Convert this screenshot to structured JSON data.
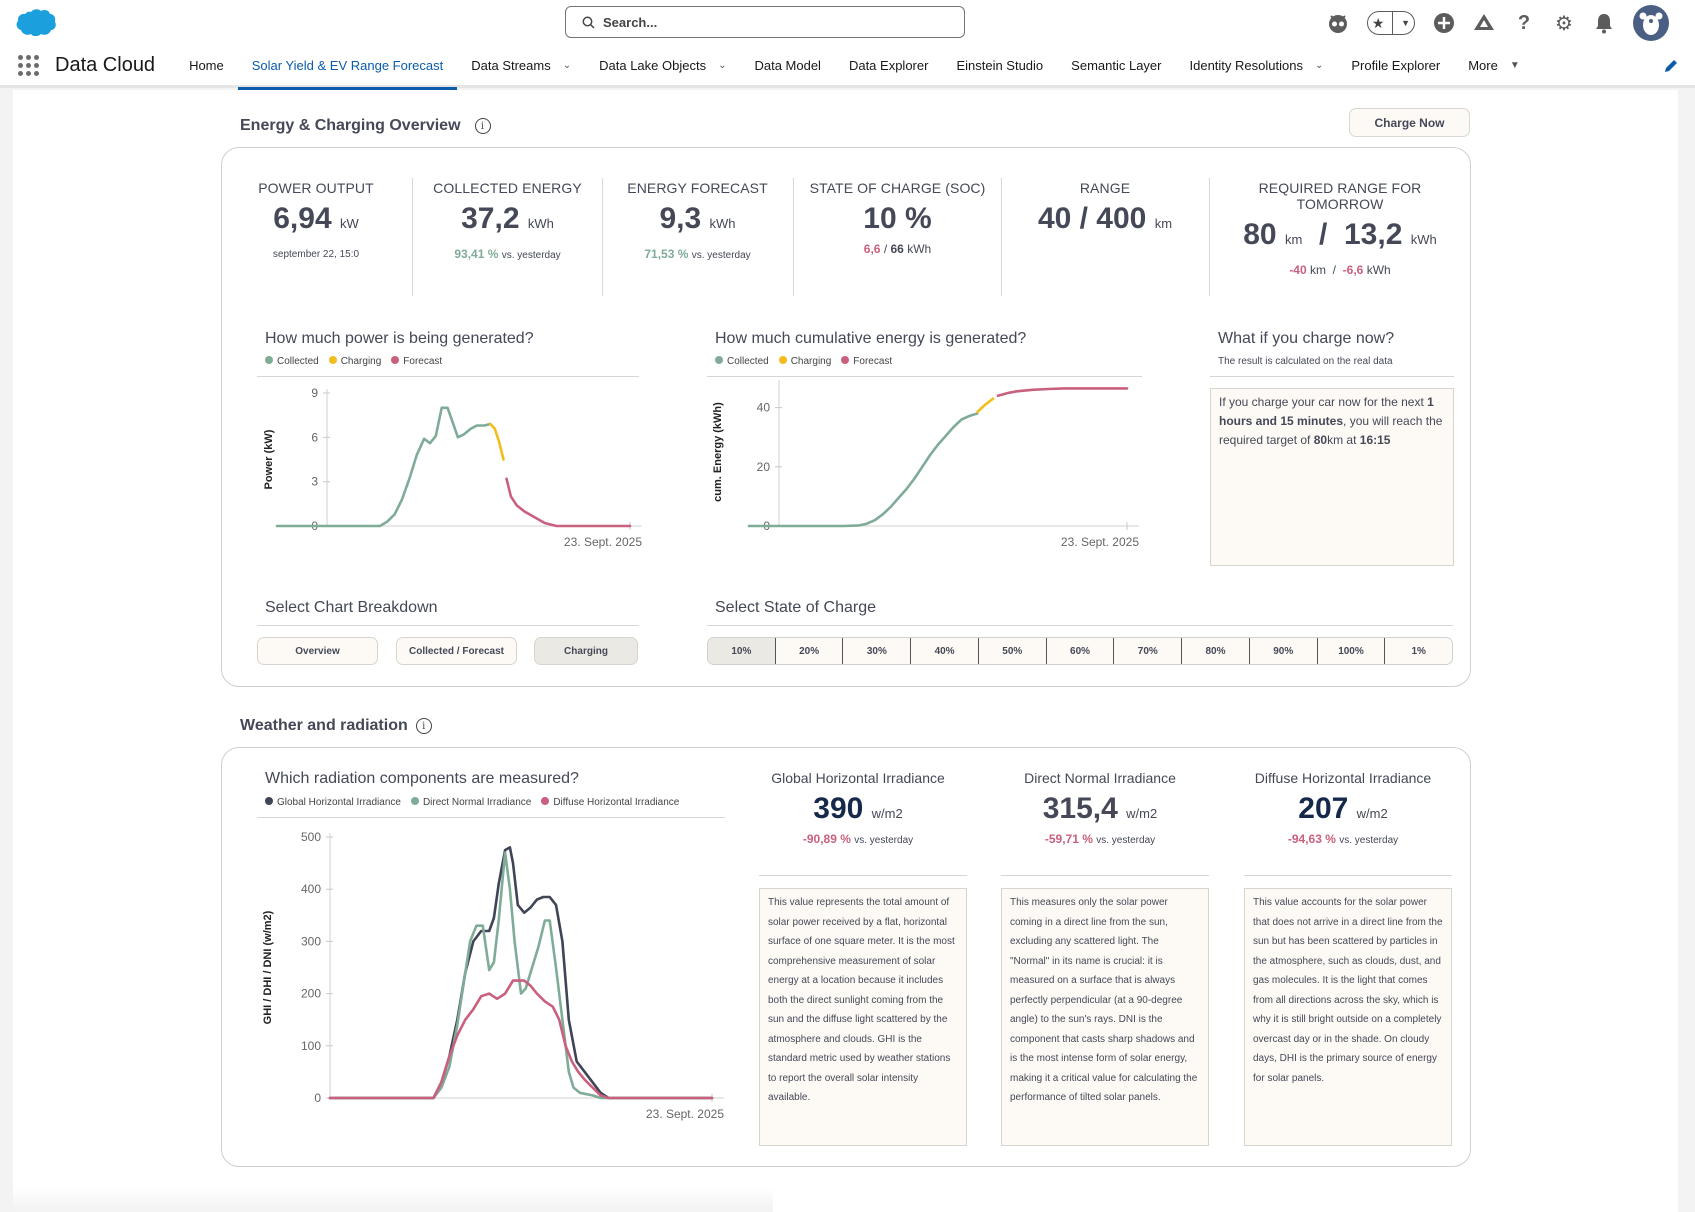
{
  "header": {
    "search_placeholder": "Search...",
    "app_name": "Data Cloud",
    "nav": [
      {
        "label": "Home",
        "dropdown": false,
        "active": false
      },
      {
        "label": "Solar Yield & EV Range Forecast",
        "dropdown": false,
        "active": true
      },
      {
        "label": "Data Streams",
        "dropdown": true,
        "active": false
      },
      {
        "label": "Data Lake Objects",
        "dropdown": true,
        "active": false
      },
      {
        "label": "Data Model",
        "dropdown": false,
        "active": false
      },
      {
        "label": "Data Explorer",
        "dropdown": false,
        "active": false
      },
      {
        "label": "Einstein Studio",
        "dropdown": false,
        "active": false
      },
      {
        "label": "Semantic Layer",
        "dropdown": false,
        "active": false
      },
      {
        "label": "Identity Resolutions",
        "dropdown": true,
        "active": false
      },
      {
        "label": "Profile Explorer",
        "dropdown": false,
        "active": false
      },
      {
        "label": "More",
        "dropdown": true,
        "active": false
      }
    ],
    "icons": [
      "astro-icon",
      "favorites-icon",
      "add-icon",
      "trailhead-icon",
      "help-icon",
      "settings-icon",
      "notifications-icon",
      "avatar"
    ]
  },
  "overview": {
    "title": "Energy & Charging Overview",
    "charge_now": "Charge Now",
    "kpis": {
      "power": {
        "label": "POWER OUTPUT",
        "value": "6,94",
        "unit": "kW",
        "sub": "september 22, 15:0"
      },
      "collected": {
        "label": "COLLECTED ENERGY",
        "value": "37,2",
        "unit": "kWh",
        "pct": "93,41 %",
        "vs": "vs. yesterday"
      },
      "forecast": {
        "label": "ENERGY FORECAST",
        "value": "9,3",
        "unit": "kWh",
        "pct": "71,53 %",
        "vs": "vs. yesterday"
      },
      "soc": {
        "label": "STATE OF CHARGE (SOC)",
        "value": "10 %",
        "cur": "6,6",
        "sep": "/",
        "total": "66",
        "unit": "kWh"
      },
      "range": {
        "label": "RANGE",
        "value": "40 / 400",
        "unit": "km"
      },
      "required": {
        "label": "REQUIRED RANGE FOR TOMORROW",
        "km": "80",
        "km_unit": "km",
        "sep": "/",
        "kwh": "13,2",
        "kwh_unit": "kWh",
        "dkm": "-40",
        "dkm_unit": "km",
        "dsep": "/",
        "dkwh": "-6,6",
        "dkwh_unit": "kWh"
      }
    },
    "what_if": {
      "title": "What if you charge now?",
      "subtitle": "The result is calculated on the real data",
      "t1": "If you charge your car now for the next ",
      "b1": "1 hours and 15 minutes",
      "t2": ", you will reach the required target of ",
      "b2": "80",
      "t3": "km at ",
      "b3": "16:15"
    },
    "breakdown": {
      "title": "Select Chart Breakdown",
      "options": [
        "Overview",
        "Collected / Forecast",
        "Charging"
      ],
      "selected": "Charging"
    },
    "soc_select": {
      "title": "Select State of Charge",
      "options": [
        "10%",
        "20%",
        "30%",
        "40%",
        "50%",
        "60%",
        "70%",
        "80%",
        "90%",
        "100%",
        "1%"
      ],
      "selected": "10%"
    }
  },
  "weather": {
    "title": "Weather and radiation",
    "cards": [
      {
        "title": "Global Horizontal Irradiance",
        "value": "390",
        "unit": "w/m2",
        "delta": "-90,89 %",
        "vs": "vs. yesterday",
        "desc": "This value represents the total amount of solar power received by a flat, horizontal surface of one square meter. It is the most comprehensive measurement of solar energy at a location because it includes both the direct sunlight coming from the sun and the diffuse light scattered by the atmosphere and clouds. GHI is the standard metric used by weather stations to report the overall solar intensity available."
      },
      {
        "title": "Direct Normal Irradiance",
        "value": "315,4",
        "unit": "w/m2",
        "delta": "-59,71 %",
        "vs": "vs. yesterday",
        "desc": "This measures only the solar power coming in a direct line from the sun, excluding any scattered light. The \"Normal\" in its name is crucial: it is measured on a surface that is always perfectly perpendicular (at a 90-degree angle) to the sun's rays. DNI is the component that casts sharp shadows and is the most intense form of solar energy, making it a critical value for calculating the performance of tilted solar panels."
      },
      {
        "title": "Diffuse Horizontal Irradiance",
        "value": "207",
        "unit": "w/m2",
        "delta": "-94,63 %",
        "vs": "vs. yesterday",
        "desc": "This value accounts for the solar power that does not arrive in a direct line from the sun but has been scattered by particles in the atmosphere, such as clouds, dust, and gas molecules. It is the light that comes from all directions across the sky, which is why it is still bright outside on a completely overcast day or in the shade. On cloudy days, DHI is the primary source of energy for solar panels."
      }
    ]
  },
  "colors": {
    "collected": "#7fac97",
    "charging": "#f2bd1d",
    "forecast": "#c9607d",
    "ghi": "#3f4456",
    "dni": "#7fac97",
    "dhi": "#c9607d"
  },
  "chart_data": [
    {
      "type": "line",
      "title": "How much power is being generated?",
      "ylabel": "Power (kW)",
      "xlabel": "",
      "x_tick": "23. Sept. 2025",
      "ylim": [
        0,
        9
      ],
      "yticks": [
        0,
        3,
        6,
        9
      ],
      "legend": [
        "Collected",
        "Charging",
        "Forecast"
      ],
      "x_hours": [
        0,
        1,
        2,
        3,
        4,
        5,
        6,
        7,
        8,
        9,
        10,
        11,
        12,
        13,
        14,
        15,
        16,
        17,
        18,
        19,
        20,
        21,
        22,
        23,
        24
      ],
      "series": [
        {
          "name": "Collected",
          "x": [
            0,
            6,
            7,
            7.5,
            8,
            8.5,
            9,
            9.5,
            10,
            10.4,
            10.8,
            11.2,
            11.6,
            12.3,
            12.7,
            13.2,
            13.6,
            14.1,
            14.5
          ],
          "values": [
            0,
            0,
            0,
            0.3,
            0.8,
            1.8,
            3.2,
            4.8,
            5.9,
            5.6,
            6.1,
            8.0,
            8.0,
            6.0,
            6.2,
            6.6,
            6.8,
            6.8,
            6.9
          ]
        },
        {
          "name": "Charging",
          "x": [
            14.5,
            14.8,
            15.1,
            15.4
          ],
          "values": [
            6.9,
            6.6,
            5.7,
            4.5
          ]
        },
        {
          "name": "Forecast",
          "x": [
            15.6,
            15.9,
            16.3,
            16.8,
            17.5,
            18.2,
            19,
            20,
            24
          ],
          "values": [
            3.2,
            2.0,
            1.4,
            1.0,
            0.6,
            0.2,
            0,
            0,
            0
          ]
        }
      ]
    },
    {
      "type": "line",
      "title": "How much cumulative energy is generated?",
      "ylabel": "cum. Energy (kWh)",
      "xlabel": "",
      "x_tick": "23. Sept. 2025",
      "ylim": [
        0,
        50
      ],
      "yticks": [
        0,
        20,
        40
      ],
      "legend": [
        "Collected",
        "Charging",
        "Forecast"
      ],
      "series": [
        {
          "name": "Collected",
          "x": [
            0,
            6,
            7,
            7.5,
            8,
            8.5,
            9,
            9.5,
            10,
            10.5,
            11,
            11.5,
            12,
            12.5,
            13,
            13.5,
            14,
            14.5
          ],
          "values": [
            0,
            0,
            0.2,
            0.8,
            2,
            4,
            6.5,
            9.5,
            12.5,
            16,
            20,
            24,
            27.5,
            30.5,
            33.5,
            36,
            37.2,
            38
          ]
        },
        {
          "name": "Charging",
          "x": [
            14.5,
            15,
            15.5
          ],
          "values": [
            38.5,
            41,
            43
          ]
        },
        {
          "name": "Forecast",
          "x": [
            15.8,
            16.5,
            17,
            18,
            19,
            20,
            22,
            24
          ],
          "values": [
            44,
            45,
            45.5,
            46,
            46.3,
            46.5,
            46.5,
            46.5
          ]
        }
      ]
    },
    {
      "type": "line",
      "title": "Which radiation components are measured?",
      "ylabel": "GHI / DHI / DNI (w/m2)",
      "xlabel": "",
      "x_tick": "23. Sept. 2025",
      "ylim": [
        0,
        500
      ],
      "yticks": [
        0,
        100,
        200,
        300,
        400,
        500
      ],
      "legend": [
        "Global Horizontal Irradiance",
        "Direct Normal Irradiance",
        "Diffuse Horizontal Irradiance"
      ],
      "series": [
        {
          "name": "Global Horizontal Irradiance",
          "x": [
            0,
            6.5,
            7,
            7.5,
            8,
            8.5,
            9,
            9.5,
            10,
            10.3,
            10.6,
            11,
            11.3,
            11.5,
            11.8,
            12.2,
            12.6,
            13,
            13.4,
            13.8,
            14.2,
            14.6,
            15,
            15.5,
            16,
            16.5,
            17,
            17.5,
            18,
            24
          ],
          "values": [
            0,
            0,
            30,
            80,
            150,
            240,
            300,
            320,
            320,
            345,
            410,
            475,
            480,
            450,
            370,
            355,
            365,
            380,
            385,
            385,
            370,
            300,
            150,
            70,
            50,
            30,
            10,
            0,
            0,
            0
          ]
        },
        {
          "name": "Direct Normal Irradiance",
          "x": [
            0,
            6.5,
            7,
            7.5,
            8,
            8.5,
            8.8,
            9.2,
            9.6,
            10,
            10.3,
            10.6,
            11,
            11.3,
            11.6,
            12,
            12.3,
            12.7,
            13.1,
            13.5,
            13.8,
            14.2,
            14.6,
            15,
            15.3,
            15.7,
            16,
            16.5,
            17,
            24
          ],
          "values": [
            0,
            0,
            20,
            60,
            140,
            240,
            300,
            330,
            330,
            245,
            260,
            340,
            470,
            400,
            300,
            200,
            210,
            250,
            290,
            340,
            340,
            250,
            150,
            50,
            20,
            10,
            8,
            5,
            0,
            0
          ]
        },
        {
          "name": "Diffuse Horizontal Irradiance",
          "x": [
            0,
            6.5,
            7,
            7.5,
            8,
            8.5,
            9,
            9.5,
            10,
            10.5,
            11,
            11.5,
            11.8,
            12.2,
            12.6,
            13,
            13.5,
            14,
            14.4,
            14.8,
            15.2,
            15.6,
            16,
            16.5,
            17,
            17.5,
            18,
            24
          ],
          "values": [
            0,
            0,
            30,
            80,
            120,
            150,
            170,
            195,
            200,
            190,
            200,
            225,
            225,
            225,
            215,
            200,
            185,
            175,
            150,
            100,
            70,
            50,
            35,
            20,
            5,
            0,
            0,
            0
          ]
        }
      ]
    }
  ]
}
